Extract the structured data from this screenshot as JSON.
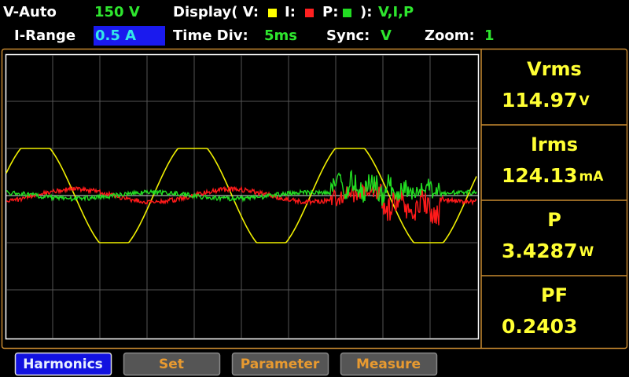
{
  "status": {
    "range_mode": "V-Auto",
    "range_value": "150 V",
    "display_label": "Display( V:",
    "display_i": "I:",
    "display_p": "P:",
    "display_end": "):",
    "display_value": "V,I,P",
    "irange_label": "I-Range",
    "irange_value": "0.5 A",
    "timediv_label": "Time Div:",
    "timediv_value": "5ms",
    "sync_label": "Sync:",
    "sync_value": "V",
    "zoom_label": "Zoom:",
    "zoom_value": "1"
  },
  "readings": [
    {
      "label": "Vrms",
      "value": "114.97",
      "unit": "V"
    },
    {
      "label": "Irms",
      "value": "124.13",
      "unit": "mA"
    },
    {
      "label": "P",
      "value": "3.4287",
      "unit": "W"
    },
    {
      "label": "PF",
      "value": "0.2403"
    }
  ],
  "buttons": [
    "Harmonics",
    "Set",
    "Parameter",
    "Measure"
  ]
}
